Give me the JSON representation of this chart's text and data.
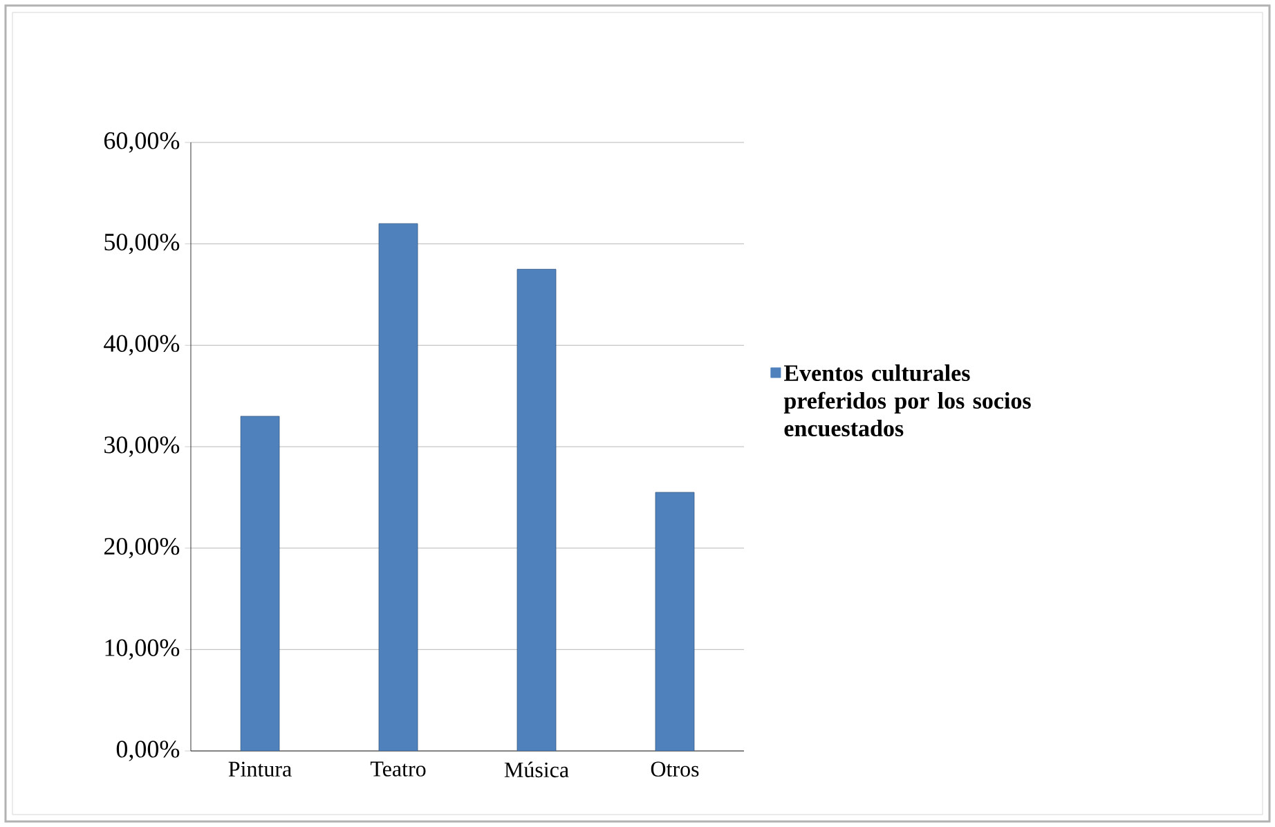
{
  "chart_data": {
    "type": "bar",
    "categories": [
      "Pintura",
      "Teatro",
      "Música",
      "Otros"
    ],
    "series": [
      {
        "name": "Eventos culturales preferidos por los socios encuestados",
        "color": "#4f81bd",
        "values": [
          33,
          52,
          47.5,
          25.5
        ]
      }
    ],
    "ylim": [
      0,
      60
    ],
    "yticks": [
      {
        "value": 0,
        "label": "0,00%"
      },
      {
        "value": 10,
        "label": "10,00%"
      },
      {
        "value": 20,
        "label": "20,00%"
      },
      {
        "value": 30,
        "label": "30,00%"
      },
      {
        "value": 40,
        "label": "40,00%"
      },
      {
        "value": 50,
        "label": "50,00%"
      },
      {
        "value": 60,
        "label": "60,00%"
      }
    ],
    "grid": "y",
    "legend": "right"
  }
}
